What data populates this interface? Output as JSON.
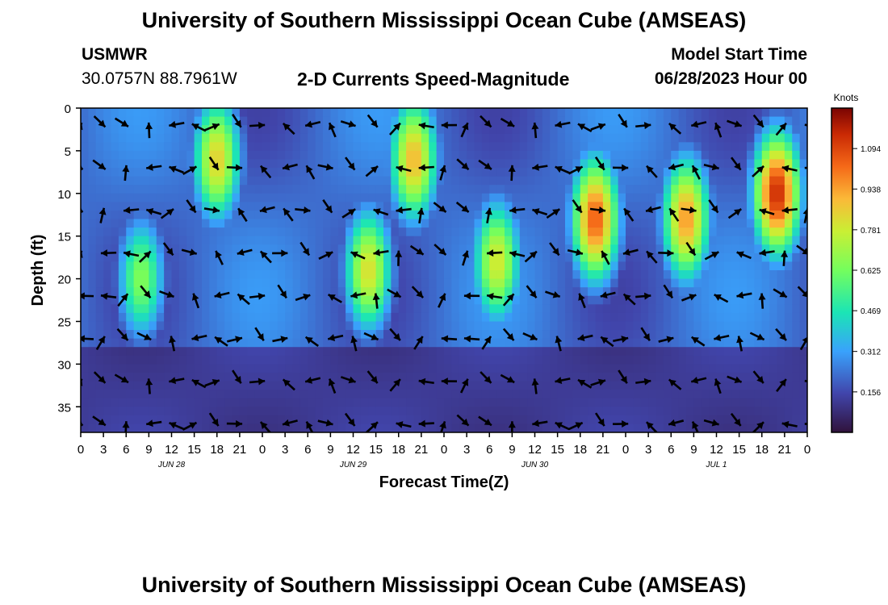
{
  "page": {
    "title_top": "University of Southern Mississippi Ocean Cube (AMSEAS)",
    "title_bottom": "University of Southern Mississippi Ocean Cube (AMSEAS)",
    "station": "USMWR",
    "location": "30.0757N  88.7961W",
    "subtitle": "2-D Currents Speed-Magnitude",
    "model_start_label": "Model Start Time",
    "model_start_value": "06/28/2023 Hour 00"
  },
  "chart_data": {
    "type": "heatmap",
    "title": "2-D Currents Speed-Magnitude",
    "xlabel": "Forecast Time(Z)",
    "ylabel": "Depth (ft)",
    "x_tick_labels": [
      "0",
      "3",
      "6",
      "9",
      "12",
      "15",
      "18",
      "21",
      "0",
      "3",
      "6",
      "9",
      "12",
      "15",
      "18",
      "21",
      "0",
      "3",
      "6",
      "9",
      "12",
      "15",
      "18",
      "21",
      "0",
      "3",
      "6",
      "9",
      "12",
      "15",
      "18",
      "21",
      "0"
    ],
    "x_range_hours": [
      0,
      96
    ],
    "day_labels": [
      {
        "label": "JUN 28",
        "hour": 12
      },
      {
        "label": "JUN 29",
        "hour": 36
      },
      {
        "label": "JUN 30",
        "hour": 60
      },
      {
        "label": "JUL 1",
        "hour": 84
      }
    ],
    "y_ticks": [
      0,
      5,
      10,
      15,
      20,
      25,
      30,
      35
    ],
    "y_range_ft": [
      0,
      38
    ],
    "y_inverted": true,
    "colorbar": {
      "title": "Knots",
      "ticks": [
        "1.094",
        "0.938",
        "0.781",
        "0.625",
        "0.469",
        "0.312",
        "0.156"
      ],
      "tick_values": [
        1.094,
        0.938,
        0.781,
        0.625,
        0.469,
        0.312,
        0.156
      ],
      "range": [
        0,
        1.25
      ]
    },
    "speed_cores": [
      {
        "hour": 18,
        "depth_ft": 6,
        "speed_kt": 0.85
      },
      {
        "hour": 8,
        "depth_ft": 20,
        "speed_kt": 0.65
      },
      {
        "hour": 38,
        "depth_ft": 19,
        "speed_kt": 0.82
      },
      {
        "hour": 44,
        "depth_ft": 6,
        "speed_kt": 0.9
      },
      {
        "hour": 55,
        "depth_ft": 18,
        "speed_kt": 0.8
      },
      {
        "hour": 68,
        "depth_ft": 13,
        "speed_kt": 1.05
      },
      {
        "hour": 80,
        "depth_ft": 13,
        "speed_kt": 0.95
      },
      {
        "hour": 92,
        "depth_ft": 10,
        "speed_kt": 1.15
      }
    ],
    "vectors": "current direction arrows on a 3-hour x 5-ft grid"
  }
}
